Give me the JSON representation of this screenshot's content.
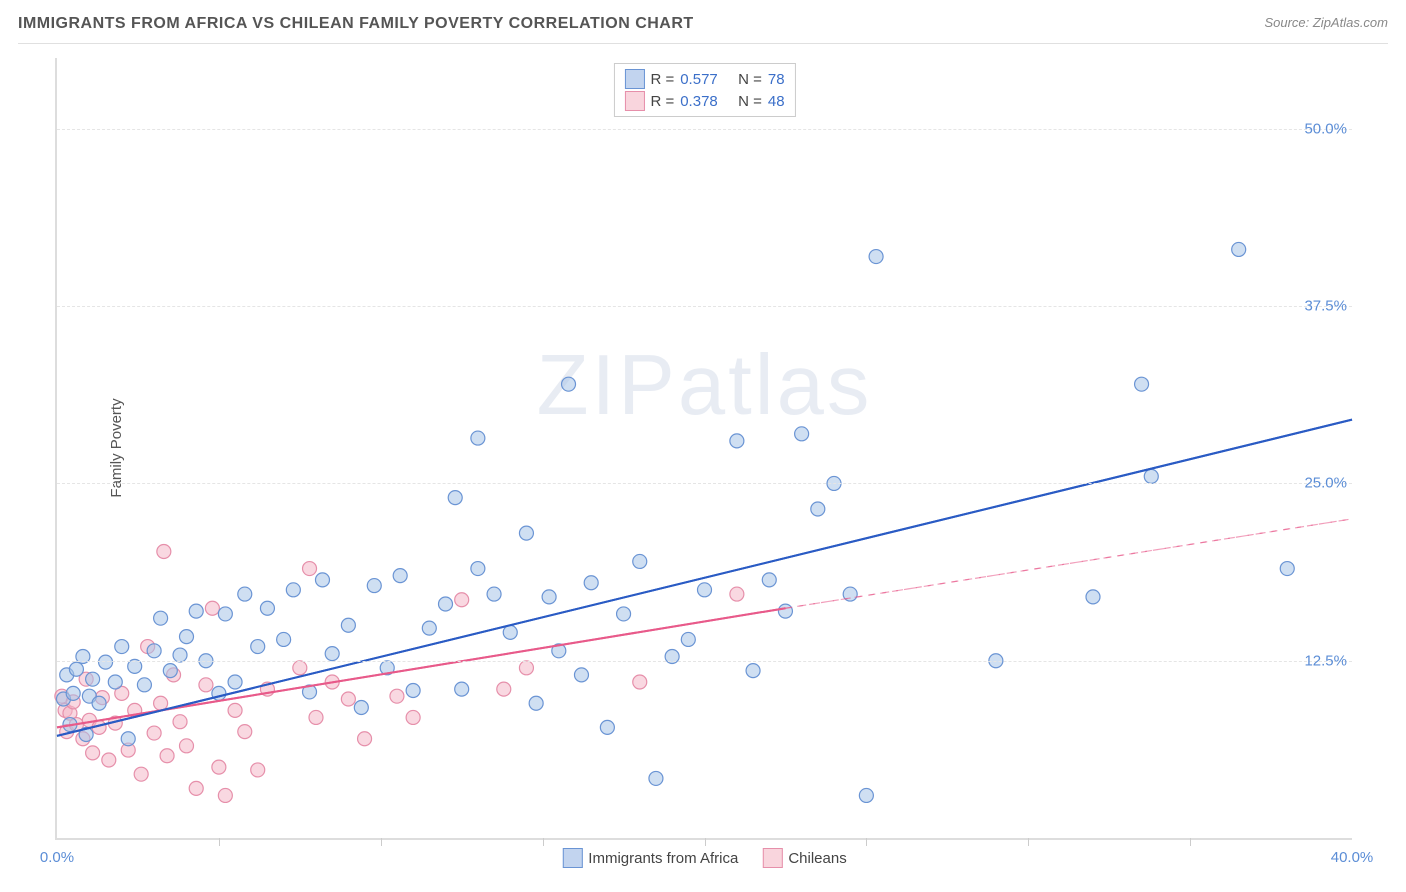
{
  "header": {
    "title": "IMMIGRANTS FROM AFRICA VS CHILEAN FAMILY POVERTY CORRELATION CHART",
    "source_prefix": "Source: ",
    "source": "ZipAtlas.com"
  },
  "watermark": "ZIPatlas",
  "chart": {
    "type": "scatter",
    "ylabel": "Family Poverty",
    "xlim": [
      0,
      40
    ],
    "ylim": [
      0,
      55
    ],
    "x_ticks": [
      0,
      40
    ],
    "x_tick_labels": [
      "0.0%",
      "40.0%"
    ],
    "x_minor_ticks": [
      5,
      10,
      15,
      20,
      25,
      30,
      35
    ],
    "y_ticks": [
      12.5,
      25.0,
      37.5,
      50.0
    ],
    "y_tick_labels": [
      "12.5%",
      "25.0%",
      "37.5%",
      "50.0%"
    ],
    "background_color": "#ffffff",
    "grid_color": "#e5e5e5",
    "axis_color": "#dddddd",
    "marker_radius": 7,
    "marker_opacity": 0.55,
    "series": [
      {
        "name": "Immigrants from Africa",
        "color_fill": "#a7c4e8",
        "color_stroke": "#6a94d4",
        "R": 0.577,
        "N": 78,
        "trend": {
          "x1": 0,
          "y1": 7.2,
          "x2": 40,
          "y2": 29.5,
          "color": "#2a5bc4",
          "width": 2,
          "dash_after_x": 40
        },
        "points": [
          [
            0.2,
            9.8
          ],
          [
            0.3,
            11.5
          ],
          [
            0.4,
            8.0
          ],
          [
            0.5,
            10.2
          ],
          [
            0.6,
            11.9
          ],
          [
            0.8,
            12.8
          ],
          [
            0.9,
            7.3
          ],
          [
            1.0,
            10.0
          ],
          [
            1.1,
            11.2
          ],
          [
            1.3,
            9.5
          ],
          [
            1.5,
            12.4
          ],
          [
            1.8,
            11.0
          ],
          [
            2.0,
            13.5
          ],
          [
            2.2,
            7.0
          ],
          [
            2.4,
            12.1
          ],
          [
            2.7,
            10.8
          ],
          [
            3.0,
            13.2
          ],
          [
            3.2,
            15.5
          ],
          [
            3.5,
            11.8
          ],
          [
            3.8,
            12.9
          ],
          [
            4.0,
            14.2
          ],
          [
            4.3,
            16.0
          ],
          [
            4.6,
            12.5
          ],
          [
            5.0,
            10.2
          ],
          [
            5.2,
            15.8
          ],
          [
            5.5,
            11.0
          ],
          [
            5.8,
            17.2
          ],
          [
            6.2,
            13.5
          ],
          [
            6.5,
            16.2
          ],
          [
            7.0,
            14.0
          ],
          [
            7.3,
            17.5
          ],
          [
            7.8,
            10.3
          ],
          [
            8.2,
            18.2
          ],
          [
            8.5,
            13.0
          ],
          [
            9.0,
            15.0
          ],
          [
            9.4,
            9.2
          ],
          [
            9.8,
            17.8
          ],
          [
            10.2,
            12.0
          ],
          [
            10.6,
            18.5
          ],
          [
            11.0,
            10.4
          ],
          [
            11.5,
            14.8
          ],
          [
            12.0,
            16.5
          ],
          [
            12.3,
            24.0
          ],
          [
            12.5,
            10.5
          ],
          [
            13.0,
            28.2
          ],
          [
            13.0,
            19.0
          ],
          [
            13.5,
            17.2
          ],
          [
            14.0,
            14.5
          ],
          [
            14.5,
            21.5
          ],
          [
            14.8,
            9.5
          ],
          [
            15.2,
            17.0
          ],
          [
            15.5,
            13.2
          ],
          [
            15.8,
            32.0
          ],
          [
            16.2,
            11.5
          ],
          [
            16.5,
            18.0
          ],
          [
            17.0,
            7.8
          ],
          [
            17.5,
            15.8
          ],
          [
            18.0,
            19.5
          ],
          [
            18.5,
            4.2
          ],
          [
            19.0,
            12.8
          ],
          [
            19.5,
            14.0
          ],
          [
            20.0,
            17.5
          ],
          [
            21.0,
            28.0
          ],
          [
            21.5,
            11.8
          ],
          [
            22.0,
            18.2
          ],
          [
            22.5,
            16.0
          ],
          [
            23.0,
            28.5
          ],
          [
            23.5,
            23.2
          ],
          [
            24.0,
            25.0
          ],
          [
            24.5,
            17.2
          ],
          [
            25.0,
            3.0
          ],
          [
            25.3,
            41.0
          ],
          [
            29.0,
            12.5
          ],
          [
            33.5,
            32.0
          ],
          [
            33.8,
            25.5
          ],
          [
            36.5,
            41.5
          ],
          [
            38.0,
            19.0
          ],
          [
            32.0,
            17.0
          ]
        ]
      },
      {
        "name": "Chileans",
        "color_fill": "#f4b8c8",
        "color_stroke": "#e68faa",
        "R": 0.378,
        "N": 48,
        "trend": {
          "x1": 0,
          "y1": 7.8,
          "x2": 22.5,
          "y2": 16.2,
          "color": "#e85a8a",
          "width": 2,
          "dash_after_x": 22.5,
          "dash_x2": 40,
          "dash_y2": 22.5
        },
        "points": [
          [
            0.15,
            10.0
          ],
          [
            0.25,
            9.0
          ],
          [
            0.3,
            7.5
          ],
          [
            0.4,
            8.8
          ],
          [
            0.5,
            9.6
          ],
          [
            0.6,
            8.0
          ],
          [
            0.8,
            7.0
          ],
          [
            0.9,
            11.2
          ],
          [
            1.0,
            8.3
          ],
          [
            1.1,
            6.0
          ],
          [
            1.3,
            7.8
          ],
          [
            1.4,
            9.9
          ],
          [
            1.6,
            5.5
          ],
          [
            1.8,
            8.1
          ],
          [
            2.0,
            10.2
          ],
          [
            2.2,
            6.2
          ],
          [
            2.4,
            9.0
          ],
          [
            2.6,
            4.5
          ],
          [
            2.8,
            13.5
          ],
          [
            3.0,
            7.4
          ],
          [
            3.2,
            9.5
          ],
          [
            3.4,
            5.8
          ],
          [
            3.6,
            11.5
          ],
          [
            3.8,
            8.2
          ],
          [
            4.0,
            6.5
          ],
          [
            4.3,
            3.5
          ],
          [
            4.6,
            10.8
          ],
          [
            5.0,
            5.0
          ],
          [
            5.2,
            3.0
          ],
          [
            5.5,
            9.0
          ],
          [
            5.8,
            7.5
          ],
          [
            6.2,
            4.8
          ],
          [
            6.5,
            10.5
          ],
          [
            3.3,
            20.2
          ],
          [
            4.8,
            16.2
          ],
          [
            7.5,
            12.0
          ],
          [
            8.0,
            8.5
          ],
          [
            8.5,
            11.0
          ],
          [
            9.0,
            9.8
          ],
          [
            9.5,
            7.0
          ],
          [
            10.5,
            10.0
          ],
          [
            11.0,
            8.5
          ],
          [
            12.5,
            16.8
          ],
          [
            13.8,
            10.5
          ],
          [
            14.5,
            12.0
          ],
          [
            18.0,
            11.0
          ],
          [
            21.0,
            17.2
          ],
          [
            7.8,
            19.0
          ]
        ]
      }
    ],
    "legend_bottom": [
      {
        "label": "Immigrants from Africa",
        "swatch": "blue"
      },
      {
        "label": "Chileans",
        "swatch": "pink"
      }
    ],
    "legend_top": [
      {
        "swatch": "blue",
        "R_label": "R = ",
        "R": "0.577",
        "N_label": "N = ",
        "N": "78"
      },
      {
        "swatch": "pink",
        "R_label": "R = ",
        "R": "0.378",
        "N_label": "N = ",
        "N": "48"
      }
    ]
  }
}
